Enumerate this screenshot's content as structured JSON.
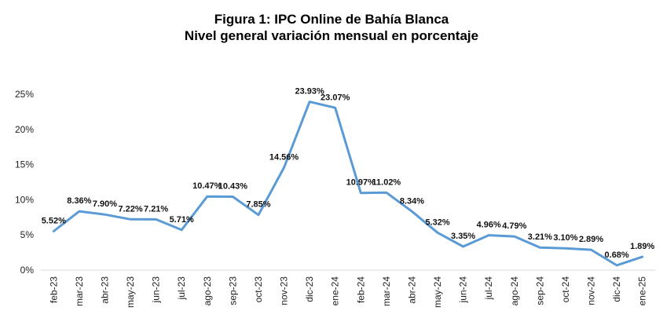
{
  "chart_data": {
    "type": "line",
    "title": "Figura 1: IPC Online de Bahía Blanca",
    "subtitle": "Nivel general variación mensual en porcentaje",
    "xlabel": "",
    "ylabel": "",
    "categories": [
      "feb-23",
      "mar-23",
      "abr-23",
      "may-23",
      "jun-23",
      "jul-23",
      "ago-23",
      "sep-23",
      "oct-23",
      "nov-23",
      "dic-23",
      "ene-24",
      "feb-24",
      "mar-24",
      "abr-24",
      "may-24",
      "jun-24",
      "jul-24",
      "ago-24",
      "sep-24",
      "oct-24",
      "nov-24",
      "dic-24",
      "ene-25"
    ],
    "series": [
      {
        "values": [
          5.52,
          8.36,
          7.9,
          7.22,
          7.21,
          5.71,
          10.47,
          10.43,
          7.85,
          14.56,
          23.93,
          23.07,
          10.97,
          11.02,
          8.34,
          5.32,
          3.35,
          4.96,
          4.79,
          3.21,
          3.1,
          2.89,
          0.68,
          1.89
        ],
        "labels": [
          "5.52%",
          "8.36%",
          "7.90%",
          "7.22%",
          "7.21%",
          "5.71%",
          "10.47%",
          "10.43%",
          "7.85%",
          "14.56%",
          "23.93%",
          "23.07%",
          "10.97%",
          "11.02%",
          "8.34%",
          "5.32%",
          "3.35%",
          "4.96%",
          "4.79%",
          "3.21%",
          "3.10%",
          "2.89%",
          "0.68%",
          "1.89%"
        ],
        "color": "#5b9bd5"
      }
    ],
    "ylim": [
      0,
      25
    ],
    "yticks": [
      0,
      5,
      10,
      15,
      20,
      25
    ],
    "ytick_labels": [
      "0%",
      "5%",
      "10%",
      "15%",
      "20%",
      "25%"
    ],
    "grid": false,
    "legend": "none"
  }
}
